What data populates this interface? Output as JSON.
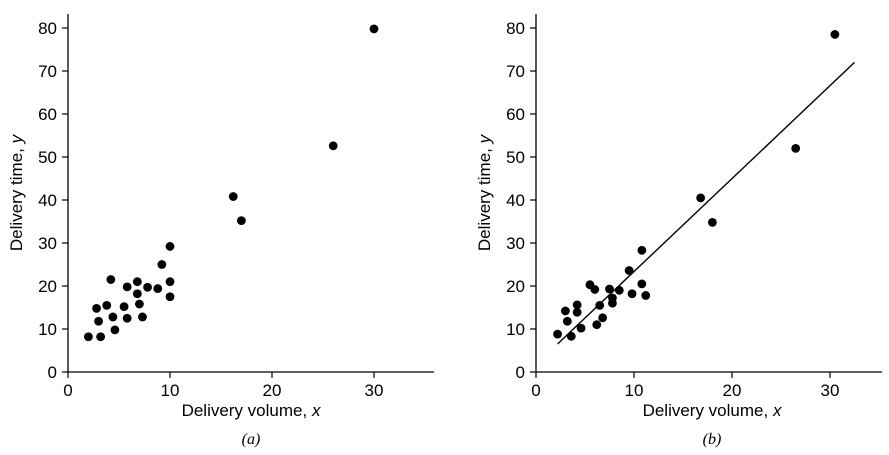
{
  "chart_data": [
    {
      "type": "scatter",
      "caption": "(a)",
      "xlabel": "Delivery volume, ",
      "xlabel_var": "x",
      "ylabel": "Delivery time, ",
      "ylabel_var": "y",
      "xlim": [
        0,
        36
      ],
      "ylim": [
        0,
        85
      ],
      "xticks": [
        0,
        10,
        20,
        30
      ],
      "yticks": [
        0,
        10,
        20,
        30,
        40,
        50,
        60,
        70,
        80
      ],
      "grid": false,
      "points": [
        [
          2,
          8.2
        ],
        [
          2.8,
          14.8
        ],
        [
          3,
          11.8
        ],
        [
          3.2,
          8.2
        ],
        [
          3.8,
          15.5
        ],
        [
          4.2,
          21.5
        ],
        [
          4.4,
          12.8
        ],
        [
          4.6,
          9.8
        ],
        [
          5.5,
          15.2
        ],
        [
          5.8,
          19.8
        ],
        [
          5.8,
          12.5
        ],
        [
          6.8,
          18.2
        ],
        [
          6.8,
          21
        ],
        [
          7,
          15.8
        ],
        [
          7.3,
          12.8
        ],
        [
          7.8,
          19.7
        ],
        [
          8.8,
          19.4
        ],
        [
          9.2,
          25
        ],
        [
          10,
          29.2
        ],
        [
          10,
          21
        ],
        [
          10,
          17.5
        ],
        [
          16.2,
          40.8
        ],
        [
          17,
          35.2
        ],
        [
          26,
          52.6
        ],
        [
          30,
          79.8
        ]
      ]
    },
    {
      "type": "scatter",
      "caption": "(b)",
      "xlabel": "Delivery volume, ",
      "xlabel_var": "x",
      "ylabel": "Delivery time, ",
      "ylabel_var": "y",
      "xlim": [
        0,
        36
      ],
      "ylim": [
        0,
        85
      ],
      "xticks": [
        0,
        10,
        20,
        30
      ],
      "yticks": [
        0,
        10,
        20,
        30,
        40,
        50,
        60,
        70,
        80
      ],
      "grid": false,
      "points": [
        [
          2.2,
          8.8
        ],
        [
          3,
          14.2
        ],
        [
          3.2,
          11.8
        ],
        [
          3.6,
          8.3
        ],
        [
          4.2,
          15.6
        ],
        [
          4.2,
          13.9
        ],
        [
          4.6,
          10.2
        ],
        [
          5.5,
          20.3
        ],
        [
          6,
          19.2
        ],
        [
          6.2,
          11
        ],
        [
          6.5,
          15.5
        ],
        [
          6.8,
          12.6
        ],
        [
          7.5,
          19.3
        ],
        [
          7.8,
          16
        ],
        [
          7.8,
          17.2
        ],
        [
          8.5,
          19
        ],
        [
          9.5,
          23.6
        ],
        [
          9.8,
          18.2
        ],
        [
          10.8,
          28.3
        ],
        [
          10.8,
          20.5
        ],
        [
          11.2,
          17.8
        ],
        [
          16.8,
          40.5
        ],
        [
          18,
          34.8
        ],
        [
          26.5,
          52
        ],
        [
          30.5,
          78.5
        ]
      ],
      "fit_line": {
        "x1": 2.2,
        "y1": 6.5,
        "x2": 32.5,
        "y2": 72
      }
    }
  ]
}
